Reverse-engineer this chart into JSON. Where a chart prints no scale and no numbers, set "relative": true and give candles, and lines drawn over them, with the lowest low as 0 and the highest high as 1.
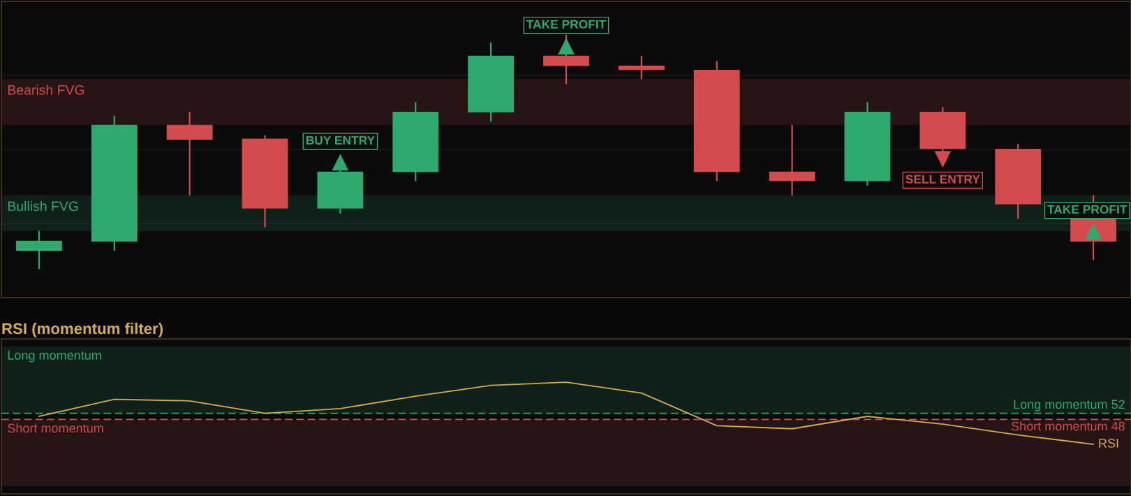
{
  "chart_data": [
    {
      "type": "candlestick",
      "categories": [
        null,
        null,
        null,
        null,
        null,
        null,
        null,
        null,
        null,
        null,
        null,
        null,
        null,
        null,
        null
      ],
      "ohlc": [
        [
          0.078,
          0.163,
          0,
          0.12
        ],
        [
          0.117,
          0.654,
          0.078,
          0.615
        ],
        [
          0.615,
          0.671,
          0.314,
          0.552
        ],
        [
          0.556,
          0.571,
          0.178,
          0.258
        ],
        [
          0.258,
          0.426,
          0.236,
          0.415
        ],
        [
          0.414,
          0.712,
          0.375,
          0.671
        ],
        [
          0.669,
          0.966,
          0.63,
          0.91
        ],
        [
          0.91,
          1,
          0.788,
          0.866
        ],
        [
          0.868,
          0.91,
          0.81,
          0.849
        ],
        [
          0.85,
          0.888,
          0.375,
          0.414
        ],
        [
          0.415,
          0.615,
          0.314,
          0.375
        ],
        [
          0.375,
          0.712,
          0.356,
          0.671
        ],
        [
          0.671,
          0.691,
          0.501,
          0.512
        ],
        [
          0.513,
          0.534,
          0.215,
          0.276
        ],
        [
          0.215,
          0.315,
          0.039,
          0.117
        ]
      ],
      "colors": [
        "#2eaa6e",
        "#2eaa6e",
        "#d34b4d",
        "#d34b4d",
        "#2eaa6e",
        "#2eaa6e",
        "#2eaa6e",
        "#d34b4d",
        "#d34b4d",
        "#d34b4d",
        "#d34b4d",
        "#2eaa6e",
        "#d34b4d",
        "#d34b4d",
        "#d34b4d"
      ],
      "relative": true,
      "series": [
        {
          "type": "scatter",
          "name": "BUY ENTRY",
          "marker": "triangle",
          "color": "#2eaa6e",
          "values": [
            null,
            null,
            null,
            null,
            0.456,
            null,
            null,
            null,
            null,
            null,
            null,
            null,
            null,
            null,
            null
          ]
        },
        {
          "type": "scatter",
          "name": "TAKE PROFIT",
          "marker": "triangle",
          "color": "#2eaa6e",
          "values": [
            null,
            null,
            null,
            null,
            null,
            null,
            null,
            0.951,
            null,
            null,
            null,
            null,
            null,
            null,
            null
          ]
        },
        {
          "type": "scatter",
          "name": "SELL ENTRY",
          "marker": "triangle_down",
          "color": "#d34b4d",
          "values": [
            null,
            null,
            null,
            null,
            null,
            null,
            null,
            null,
            null,
            null,
            null,
            null,
            0.468,
            null,
            null
          ]
        },
        {
          "type": "scatter",
          "name": "TAKE PROFIT",
          "marker": "triangle",
          "color": "#2eaa6e",
          "values": [
            null,
            null,
            null,
            null,
            null,
            null,
            null,
            null,
            null,
            null,
            null,
            null,
            null,
            null,
            0.161
          ]
        }
      ],
      "bands": [
        {
          "axis": "y",
          "from": 0.615,
          "to": 0.811,
          "label": "Bearish FVG",
          "color": "#d34b4d"
        },
        {
          "axis": "y",
          "from": 0.163,
          "to": 0.315,
          "label": "Bullish FVG",
          "color": "#2eaa6e"
        }
      ],
      "grid": "y"
    },
    {
      "type": "line",
      "title": "RSI (momentum filter)",
      "categories": [
        null,
        null,
        null,
        null,
        null,
        null,
        null,
        null,
        null,
        null,
        null,
        null,
        null,
        null,
        null
      ],
      "series": [
        {
          "name": "RSI",
          "color": "#d6aa4e",
          "values": [
            50,
            61,
            60,
            52,
            55,
            63,
            70,
            72,
            65,
            44,
            42,
            50,
            45,
            38,
            32
          ]
        }
      ],
      "ylim": [
        0,
        100
      ],
      "ref_lines": [
        {
          "axis": "y",
          "value": 52,
          "label": "Long momentum 52",
          "color": "#2eaa6e",
          "line_style": "dashed"
        },
        {
          "axis": "y",
          "value": 48,
          "label": "Short momentum 48",
          "color": "#d34b4d",
          "line_style": "dashed"
        }
      ],
      "bands": [
        {
          "axis": "y",
          "from": 52,
          "to": 95,
          "label": "Long momentum",
          "color": "#2eaa6e"
        },
        {
          "axis": "y",
          "from": 5,
          "to": 48,
          "label": "Short momentum",
          "color": "#d34b4d"
        }
      ]
    }
  ]
}
